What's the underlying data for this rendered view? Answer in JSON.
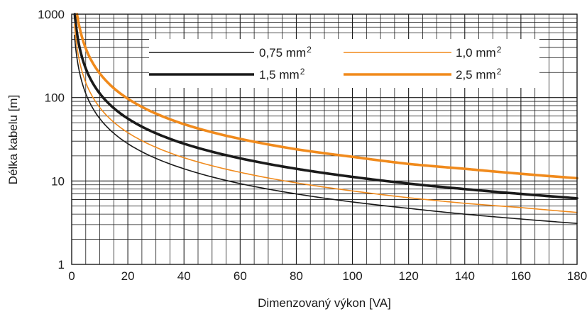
{
  "chart_data": {
    "type": "line",
    "title": "",
    "xlabel": "Dimenzovaný výkon [VA]",
    "ylabel": "Délka kabelu [m]",
    "xlim": [
      0,
      180
    ],
    "ylim": [
      1,
      1000
    ],
    "y_scale": "log",
    "grid": true,
    "legend_position": "top-right",
    "x_ticks": [
      "0",
      "20",
      "40",
      "60",
      "80",
      "100",
      "120",
      "140",
      "160",
      "180"
    ],
    "y_ticks": [
      "1",
      "10",
      "100",
      "1000"
    ],
    "series": [
      {
        "name": "0,75 mm",
        "name_sup": "2",
        "color": "#1a1a1a",
        "line_weight": "thin",
        "x": [
          1,
          2,
          5,
          10,
          20,
          40,
          60,
          80,
          100,
          120,
          140,
          160,
          180
        ],
        "y": [
          560,
          280,
          112,
          56,
          28,
          14,
          9.3,
          7,
          5.6,
          4.7,
          4,
          3.5,
          3.1
        ]
      },
      {
        "name": "1,0 mm",
        "name_sup": "2",
        "color": "#f08a1c",
        "line_weight": "thin",
        "x": [
          1,
          2,
          5,
          10,
          20,
          40,
          60,
          80,
          100,
          120,
          140,
          160,
          180
        ],
        "y": [
          760,
          380,
          152,
          76,
          38,
          19,
          12.7,
          9.5,
          7.6,
          6.3,
          5.4,
          4.8,
          4.2
        ]
      },
      {
        "name": "1,5 mm",
        "name_sup": "2",
        "color": "#1a1a1a",
        "line_weight": "thick",
        "x": [
          1.1,
          2,
          5,
          10,
          20,
          40,
          60,
          80,
          100,
          120,
          140,
          160,
          180
        ],
        "y": [
          1000,
          560,
          224,
          112,
          56,
          28,
          18.7,
          14,
          11.2,
          9.3,
          8,
          7,
          6.2
        ]
      },
      {
        "name": "2,5 mm",
        "name_sup": "2",
        "color": "#f08a1c",
        "line_weight": "thick",
        "x": [
          1.9,
          3,
          5,
          10,
          20,
          40,
          60,
          80,
          100,
          120,
          140,
          160,
          180
        ],
        "y": [
          1000,
          650,
          390,
          195,
          97,
          48,
          32,
          24,
          19.5,
          16,
          14,
          12.2,
          10.8
        ]
      }
    ]
  }
}
